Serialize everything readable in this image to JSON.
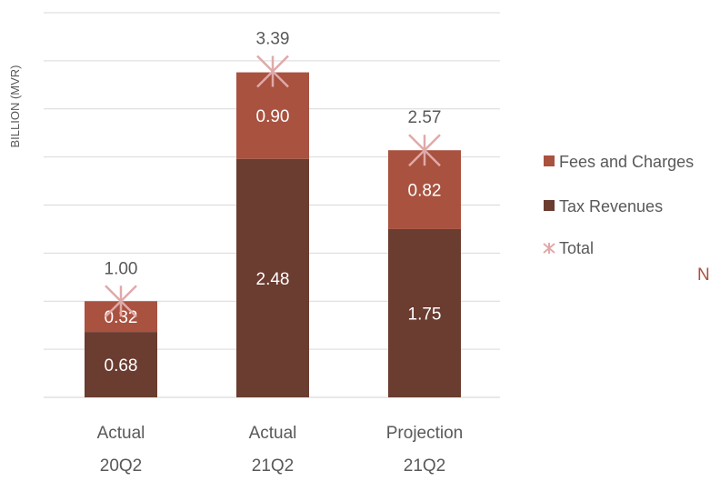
{
  "chart_data": {
    "type": "bar",
    "stacked": true,
    "ylabel": "BILLION (MVR)",
    "ylim": [
      0,
      4.0
    ],
    "grid": true,
    "legend_position": "right",
    "categories": [
      [
        "Actual",
        "20Q2"
      ],
      [
        "Actual",
        "21Q2"
      ],
      [
        "Projection",
        "21Q2"
      ]
    ],
    "series": [
      {
        "name": "Tax Revenues",
        "values": [
          0.68,
          2.48,
          1.75
        ],
        "labels": [
          "0.68",
          "2.48",
          "1.75"
        ],
        "color": "#6b3c30"
      },
      {
        "name": "Fees and Charges",
        "values": [
          0.32,
          0.9,
          0.82
        ],
        "labels": [
          "0.32",
          "0.90",
          "0.82"
        ],
        "color": "#a9523f"
      }
    ],
    "total": {
      "name": "Total",
      "values": [
        1.0,
        3.39,
        2.57
      ],
      "labels": [
        "1.00",
        "3.39",
        "2.57"
      ],
      "color": "#e0a9a9"
    },
    "legend": [
      {
        "label": "Fees and Charges",
        "color": "#a9523f",
        "symbol": "square"
      },
      {
        "label": "Tax Revenues",
        "color": "#6b3c30",
        "symbol": "square"
      },
      {
        "label": "Total",
        "color": "#e0a9a9",
        "symbol": "asterisk"
      }
    ],
    "colors": {
      "grid": "#d9d9d9",
      "text": "#595959",
      "bar_label": "#ffffff"
    }
  },
  "fragment_text": "N"
}
